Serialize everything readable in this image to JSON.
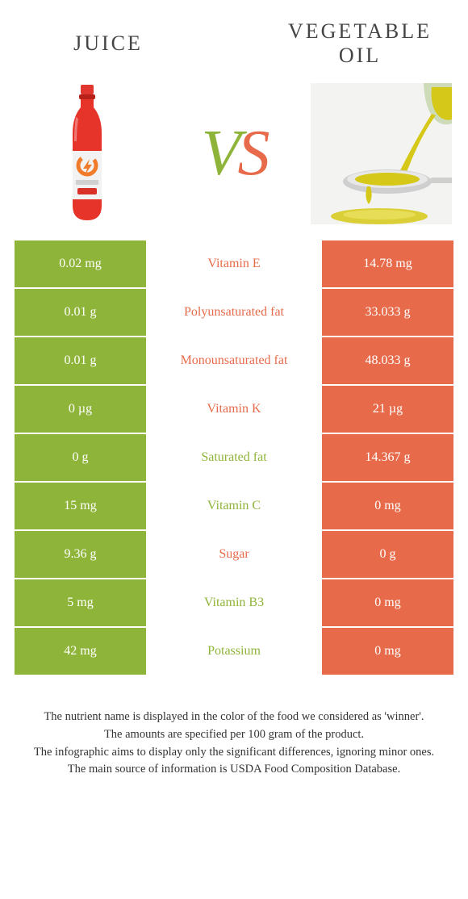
{
  "header": {
    "left_title": "JUICE",
    "right_title": "VEGETABLE OIL",
    "vs_v": "V",
    "vs_s": "S"
  },
  "colors": {
    "green": "#8fb43a",
    "orange": "#e76b4b",
    "bg": "#ffffff"
  },
  "table": {
    "rows": [
      {
        "left": "0.02 mg",
        "label": "Vitamin E",
        "right": "14.78 mg",
        "winner": "orange"
      },
      {
        "left": "0.01 g",
        "label": "Polyunsaturated fat",
        "right": "33.033 g",
        "winner": "orange"
      },
      {
        "left": "0.01 g",
        "label": "Monounsaturated fat",
        "right": "48.033 g",
        "winner": "orange"
      },
      {
        "left": "0 µg",
        "label": "Vitamin K",
        "right": "21 µg",
        "winner": "orange"
      },
      {
        "left": "0 g",
        "label": "Saturated fat",
        "right": "14.367 g",
        "winner": "green"
      },
      {
        "left": "15 mg",
        "label": "Vitamin C",
        "right": "0 mg",
        "winner": "green"
      },
      {
        "left": "9.36 g",
        "label": "Sugar",
        "right": "0 g",
        "winner": "orange"
      },
      {
        "left": "5 mg",
        "label": "Vitamin B3",
        "right": "0 mg",
        "winner": "green"
      },
      {
        "left": "42 mg",
        "label": "Potassium",
        "right": "0 mg",
        "winner": "green"
      }
    ]
  },
  "footer": {
    "l1": "The nutrient name is displayed in the color of the food we considered as 'winner'.",
    "l2": "The amounts are specified per 100 gram of the product.",
    "l3": "The infographic aims to display only the significant differences, ignoring minor ones.",
    "l4": "The main source of information is USDA Food Composition Database."
  }
}
